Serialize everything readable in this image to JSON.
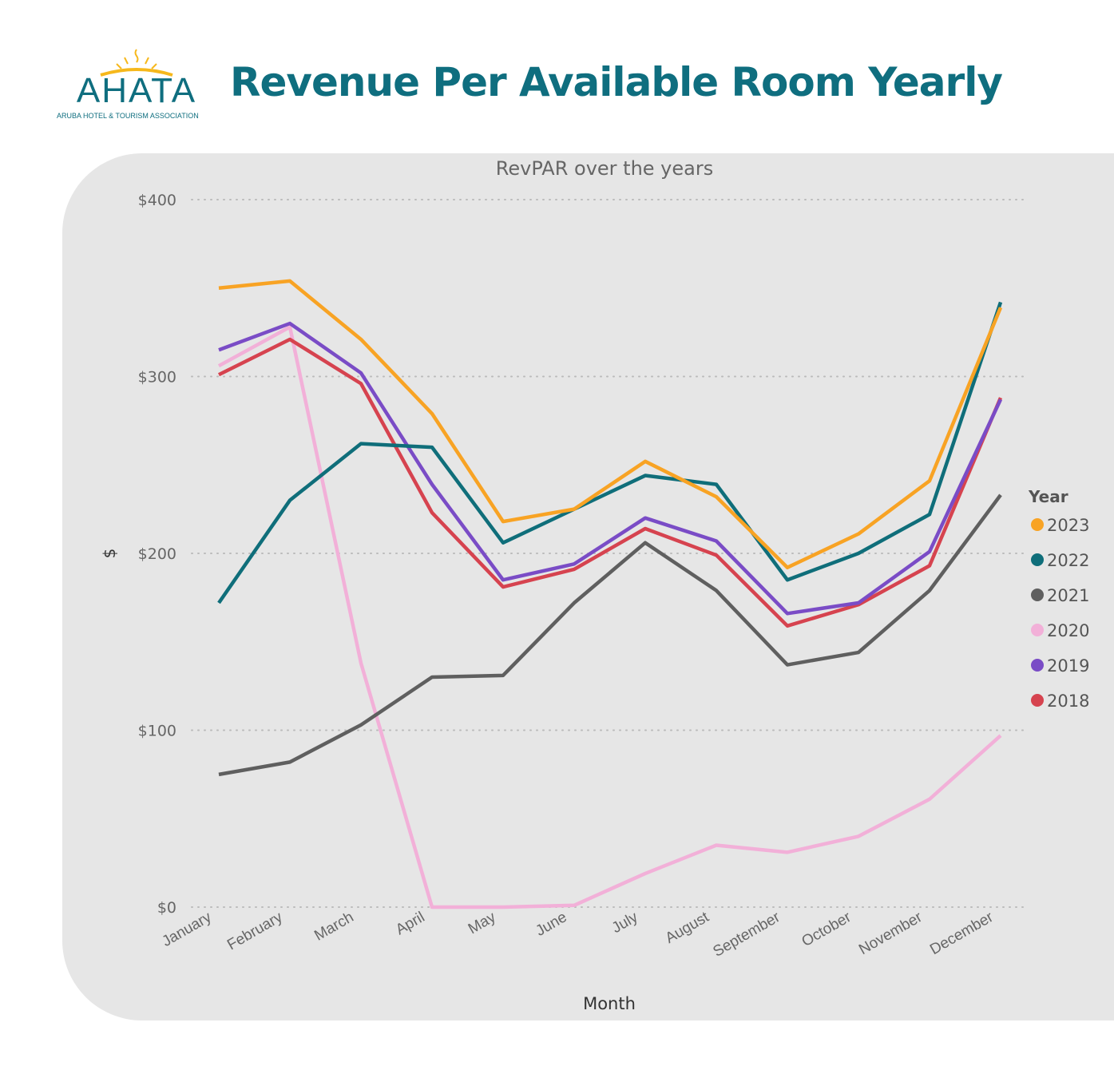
{
  "header": {
    "title": "Revenue Per Available Room Yearly",
    "logo_text": "AHATA",
    "logo_subtext": "ARUBA HOTEL & TOURISM ASSOCIATION"
  },
  "chart_data": {
    "type": "line",
    "title": "RevPAR over the years",
    "xlabel": "Month",
    "ylabel": "$",
    "ylim": [
      0,
      400
    ],
    "yticks": [
      0,
      100,
      200,
      300,
      400
    ],
    "ytick_labels": [
      "$0",
      "$100",
      "$200",
      "$300",
      "$400"
    ],
    "grid": "horizontal dotted",
    "legend_title": "Year",
    "legend_position": "right",
    "categories": [
      "January",
      "February",
      "March",
      "April",
      "May",
      "June",
      "July",
      "August",
      "September",
      "October",
      "November",
      "December"
    ],
    "series": [
      {
        "name": "2023",
        "color": "#F8A324",
        "values": [
          350,
          354,
          321,
          279,
          218,
          225,
          252,
          232,
          192,
          211,
          241,
          339
        ]
      },
      {
        "name": "2022",
        "color": "#0F6E7A",
        "values": [
          172,
          230,
          262,
          260,
          206,
          225,
          244,
          239,
          185,
          200,
          222,
          342
        ]
      },
      {
        "name": "2021",
        "color": "#5F5F5F",
        "values": [
          75,
          82,
          103,
          130,
          131,
          172,
          206,
          179,
          137,
          144,
          179,
          233
        ]
      },
      {
        "name": "2020",
        "color": "#F2B0D8",
        "values": [
          306,
          328,
          138,
          0,
          0,
          1,
          19,
          35,
          31,
          40,
          61,
          97
        ]
      },
      {
        "name": "2019",
        "color": "#7A4CC6",
        "values": [
          315,
          330,
          302,
          239,
          185,
          194,
          220,
          207,
          166,
          172,
          201,
          287
        ]
      },
      {
        "name": "2018",
        "color": "#D6434F",
        "values": [
          301,
          321,
          296,
          223,
          181,
          191,
          214,
          199,
          159,
          171,
          193,
          288
        ]
      }
    ]
  }
}
